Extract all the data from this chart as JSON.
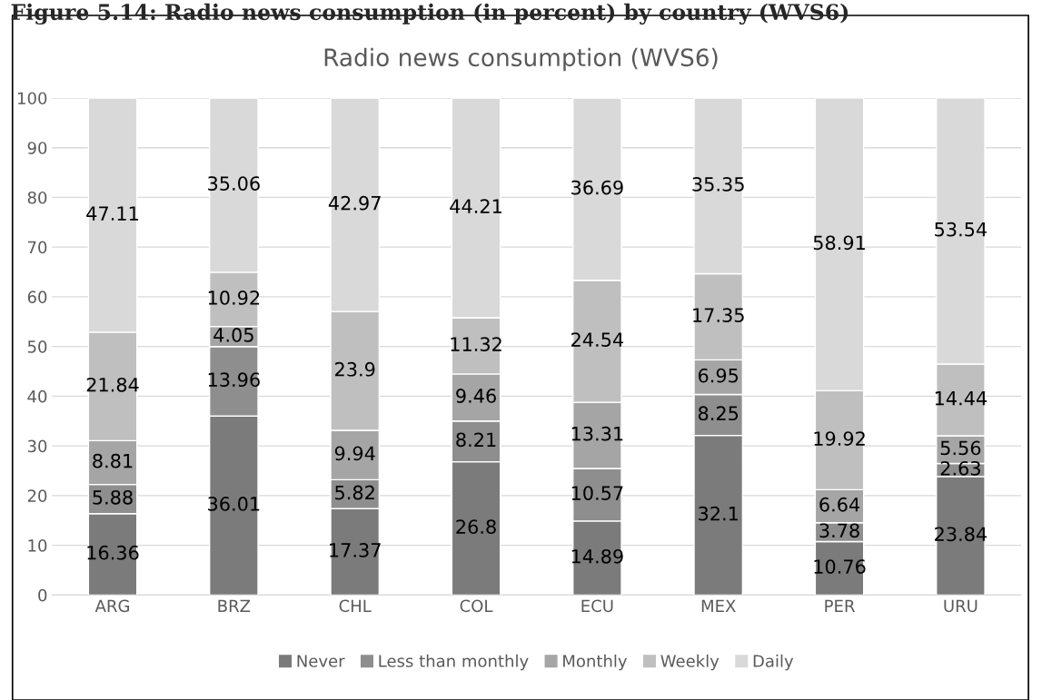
{
  "chart_data": {
    "type": "bar",
    "title": "Radio news consumption (WVS6)",
    "annotations": [
      "Figure 5.14: Radio news consumption (in percent) by country (WVS6)"
    ],
    "categories": [
      "ARG",
      "BRZ",
      "CHL",
      "COL",
      "ECU",
      "MEX",
      "PER",
      "URU"
    ],
    "stacked": true,
    "series": [
      {
        "name": "Never",
        "color": "#7b7b7b",
        "values": [
          16.36,
          36.01,
          17.37,
          26.8,
          14.89,
          32.1,
          10.76,
          23.84
        ]
      },
      {
        "name": "Less than monthly",
        "color": "#8e8e8e",
        "values": [
          5.88,
          13.96,
          5.82,
          8.21,
          10.57,
          8.25,
          3.78,
          2.63
        ]
      },
      {
        "name": "Monthly",
        "color": "#a5a5a5",
        "values": [
          8.81,
          4.05,
          9.94,
          9.46,
          13.31,
          6.95,
          6.64,
          5.56
        ]
      },
      {
        "name": "Weekly",
        "color": "#bfbfbf",
        "values": [
          21.84,
          10.92,
          23.9,
          11.32,
          24.54,
          17.35,
          19.92,
          14.44
        ]
      },
      {
        "name": "Daily",
        "color": "#d9d9d9",
        "values": [
          47.11,
          35.06,
          42.97,
          44.21,
          36.69,
          35.35,
          58.91,
          53.54
        ]
      }
    ],
    "ylim": [
      0,
      100
    ],
    "yticks": [
      0,
      10,
      20,
      30,
      40,
      50,
      60,
      70,
      80,
      90,
      100
    ],
    "grid": "y",
    "legend": "bottom",
    "data_labels": true
  }
}
